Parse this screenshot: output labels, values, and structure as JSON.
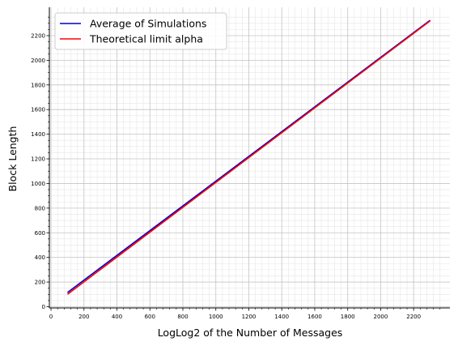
{
  "chart_data": {
    "type": "line",
    "title": "",
    "xlabel": "LogLog2 of the Number of Messages",
    "ylabel": "Block Length",
    "xlim": [
      -10,
      2420
    ],
    "ylim": [
      -10,
      2430
    ],
    "xticks": [
      0,
      200,
      400,
      600,
      800,
      1000,
      1200,
      1400,
      1600,
      1800,
      2000,
      2200
    ],
    "yticks": [
      0,
      200,
      400,
      600,
      800,
      1000,
      1200,
      1400,
      1600,
      1800,
      2000,
      2200
    ],
    "grid": "major and minor",
    "legend_position": "upper-left",
    "series": [
      {
        "name": "Average of Simulations",
        "color": "#0000cc",
        "x": [
          100,
          2300
        ],
        "y": [
          115,
          2325
        ]
      },
      {
        "name": "Theoretical limit alpha",
        "color": "#ff0000",
        "x": [
          100,
          2300
        ],
        "y": [
          100,
          2320
        ]
      }
    ]
  }
}
